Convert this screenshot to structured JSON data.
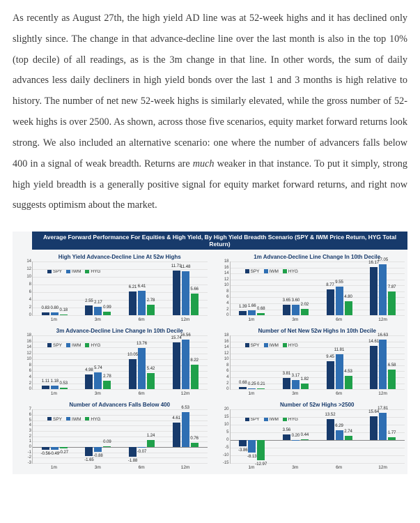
{
  "paragraph_html": "As recently as August 27th, the high yield AD line was at 52-week highs and it has declined only slightly since. The change in that advance-decline line over the last month is also in the top 10% (top decile) of all readings, as is the 3m change in that line. In other words, the sum of daily advances less daily decliners in high yield bonds over the last 1 and 3 months is high relative to history. The number of net new 52-week highs is similarly elevated, while the gross number of 52-week highs is over 2500. As shown, across those five scenarios, equity market forward returns look strong. We also included an alternative scenario: one where the number of advancers falls below 400 in a signal of weak breadth. Returns are <em>much</em> weaker in that instance. To put it simply, strong high yield breadth is a generally positive signal for equity market forward returns, and right now suggests optimism about the market.",
  "chart": {
    "super_title": "Average Forward Performance For Equities & High Yield, By High Yield Breadth Scenario (SPY & IWM Price Return, HYG Total Return)",
    "series": [
      {
        "name": "SPY",
        "color": "#173a6b"
      },
      {
        "name": "IWM",
        "color": "#2f6fb3"
      },
      {
        "name": "HYG",
        "color": "#1fa04a"
      }
    ],
    "categories": [
      "1m",
      "3m",
      "6m",
      "12m"
    ],
    "background": "#f4f5f6",
    "grid_color": "#e2e2e2",
    "axis_color": "#bbbbbb",
    "label_fontsize": 6,
    "title_fontsize": 8,
    "panels": [
      {
        "title": "High Yield Advance-Decline Line At 52w Highs",
        "ymin": 0,
        "ymax": 14,
        "ystep": 2,
        "data": [
          [
            0.83,
            0.8,
            0.18
          ],
          [
            2.55,
            2.17,
            0.99
          ],
          [
            6.21,
            6.41,
            2.78
          ],
          [
            11.71,
            11.48,
            5.66
          ]
        ]
      },
      {
        "title": "1m Advance-Decline Line Change In 10th Decile",
        "ymin": 0,
        "ymax": 18,
        "ystep": 2,
        "data": [
          [
            1.39,
            1.66,
            0.68
          ],
          [
            3.65,
            3.6,
            2.02
          ],
          [
            8.77,
            9.55,
            4.8
          ],
          [
            16.17,
            17.05,
            7.87
          ]
        ]
      },
      {
        "title": "3m Advance-Decline Line Change In 10th Decile",
        "ymin": 0,
        "ymax": 18,
        "ystep": 2,
        "data": [
          [
            1.11,
            1.18,
            0.53
          ],
          [
            4.98,
            5.74,
            2.78
          ],
          [
            10.05,
            13.76,
            5.42
          ],
          [
            15.74,
            16.56,
            8.22
          ]
        ]
      },
      {
        "title": "Number of Net New 52w Highs In 10th Decile",
        "ymin": 0,
        "ymax": 18,
        "ystep": 2,
        "data": [
          [
            0.68,
            0.25,
            0.21
          ],
          [
            3.81,
            3.17,
            1.82
          ],
          [
            9.45,
            11.81,
            4.53
          ],
          [
            14.61,
            16.63,
            6.58
          ]
        ]
      },
      {
        "title": "Number of Advancers Falls Below 400",
        "ymin": -3,
        "ymax": 7,
        "ystep": 1,
        "data": [
          [
            -0.56,
            -0.49,
            -0.27
          ],
          [
            -1.65,
            -0.88,
            0.09
          ],
          [
            -1.88,
            -0.07,
            1.24
          ],
          [
            4.61,
            6.53,
            0.76
          ]
        ]
      },
      {
        "title": "Number of 52w Highs >2500",
        "ymin": -15,
        "ymax": 20,
        "ystep": 5,
        "data": [
          [
            -3.86,
            -8.13,
            -12.97
          ],
          [
            3.56,
            0.2,
            0.44
          ],
          [
            13.52,
            6.29,
            2.74
          ],
          [
            15.64,
            17.81,
            1.77
          ]
        ]
      }
    ]
  }
}
